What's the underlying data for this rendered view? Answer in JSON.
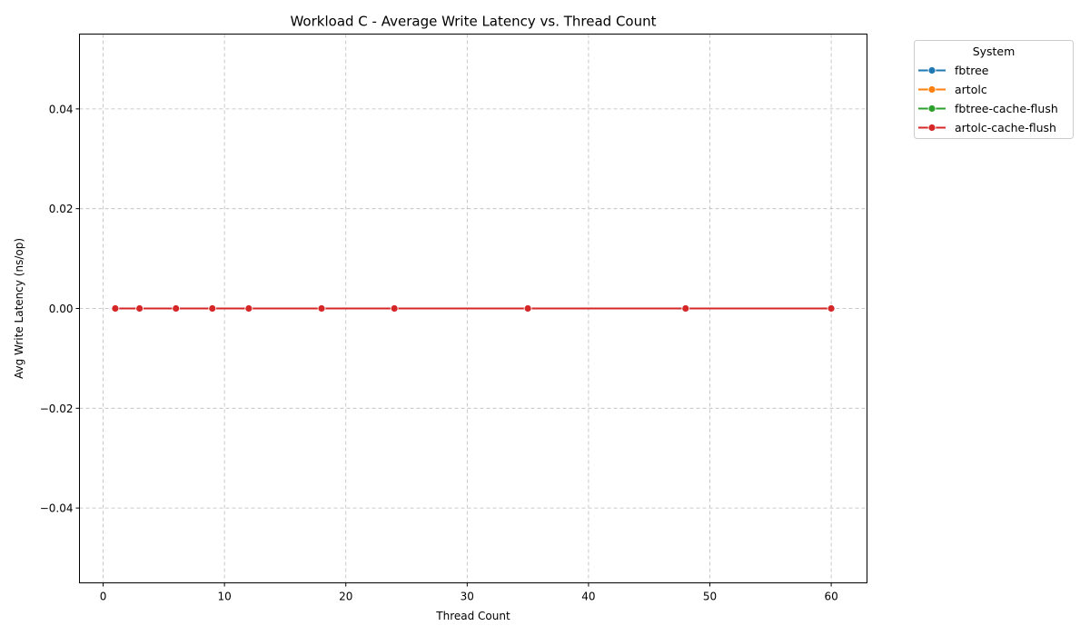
{
  "chart_data": {
    "type": "line",
    "title": "Workload C - Average Write Latency vs. Thread Count",
    "xlabel": "Thread Count",
    "ylabel": "Avg Write Latency (ns/op)",
    "xlim": [
      -1.95,
      62.95
    ],
    "ylim": [
      -0.055,
      0.055
    ],
    "xticks": [
      0,
      10,
      20,
      30,
      40,
      50,
      60
    ],
    "xtick_labels": [
      "0",
      "10",
      "20",
      "30",
      "40",
      "50",
      "60"
    ],
    "yticks": [
      -0.04,
      -0.02,
      0.0,
      0.02,
      0.04
    ],
    "ytick_labels": [
      "−0.04",
      "−0.02",
      "0.00",
      "0.02",
      "0.04"
    ],
    "grid": true,
    "legend": {
      "title": "System",
      "placement": "outside-upper-right"
    },
    "x": [
      1,
      3,
      6,
      9,
      12,
      18,
      24,
      35,
      48,
      60
    ],
    "series": [
      {
        "name": "fbtree",
        "color": "#1f77b4",
        "values": [
          0,
          0,
          0,
          0,
          0,
          0,
          0,
          0,
          0,
          0
        ]
      },
      {
        "name": "artolc",
        "color": "#ff7f0e",
        "values": [
          0,
          0,
          0,
          0,
          0,
          0,
          0,
          0,
          0,
          0
        ]
      },
      {
        "name": "fbtree-cache-flush",
        "color": "#2ca02c",
        "values": [
          0,
          0,
          0,
          0,
          0,
          0,
          0,
          0,
          0,
          0
        ]
      },
      {
        "name": "artolc-cache-flush",
        "color": "#d62728",
        "values": [
          0,
          0,
          0,
          0,
          0,
          0,
          0,
          0,
          0,
          0
        ]
      }
    ]
  }
}
